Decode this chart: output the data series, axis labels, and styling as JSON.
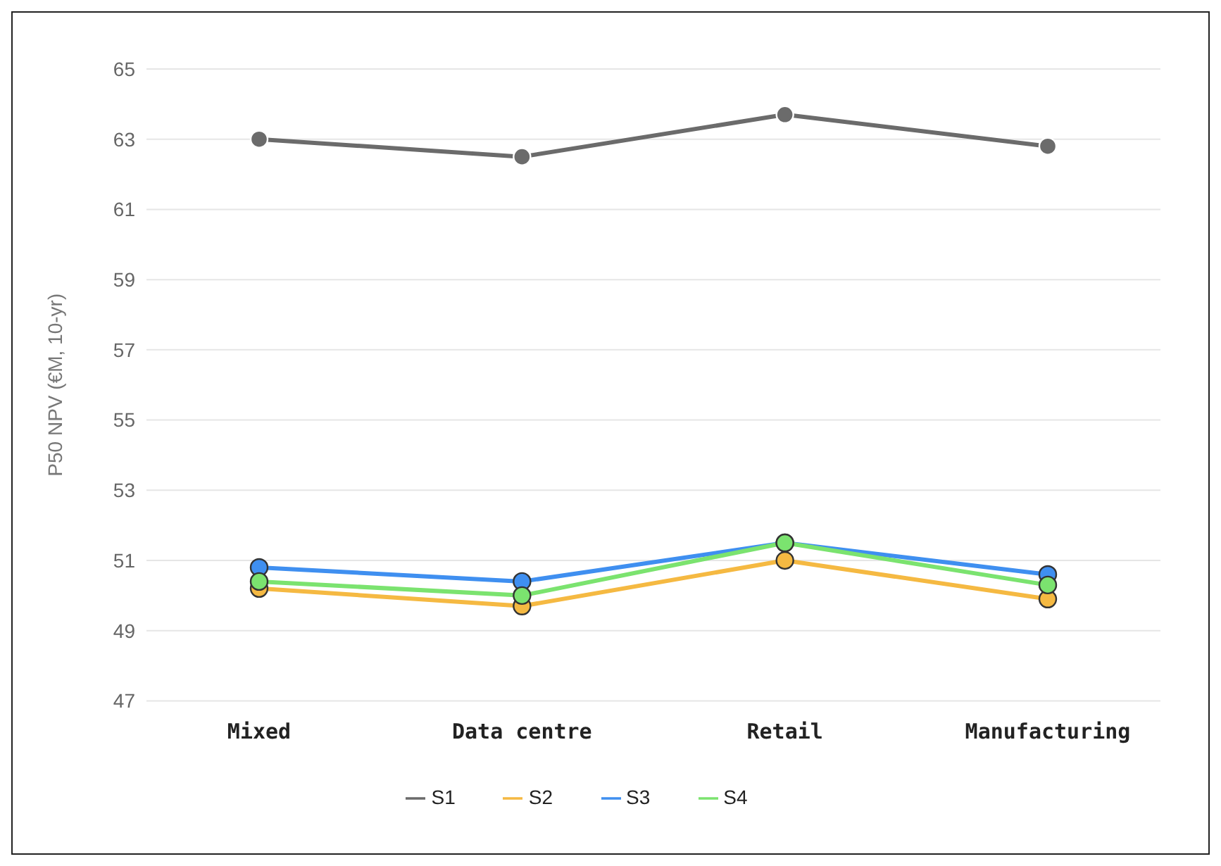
{
  "chart_data": {
    "type": "line",
    "ylabel": "P50 NPV (€M, 10-yr)",
    "categories": [
      "Mixed",
      "Data centre",
      "Retail",
      "Manufacturing"
    ],
    "series": [
      {
        "name": "S1",
        "color": "#6b6b6b",
        "values": [
          63.0,
          62.5,
          63.7,
          62.8
        ]
      },
      {
        "name": "S2",
        "color": "#f5b942",
        "values": [
          50.2,
          49.7,
          51.0,
          49.9
        ]
      },
      {
        "name": "S3",
        "color": "#3f8ff0",
        "values": [
          50.8,
          50.4,
          51.5,
          50.6
        ]
      },
      {
        "name": "S4",
        "color": "#7be36f",
        "values": [
          50.4,
          50.0,
          51.5,
          50.3
        ]
      }
    ],
    "ylim": [
      47,
      65
    ],
    "yticks": [
      47,
      49,
      51,
      53,
      55,
      57,
      59,
      61,
      63,
      65
    ],
    "grid": "y",
    "legend": "bottom",
    "marker": "circle",
    "line_style": "solid"
  }
}
